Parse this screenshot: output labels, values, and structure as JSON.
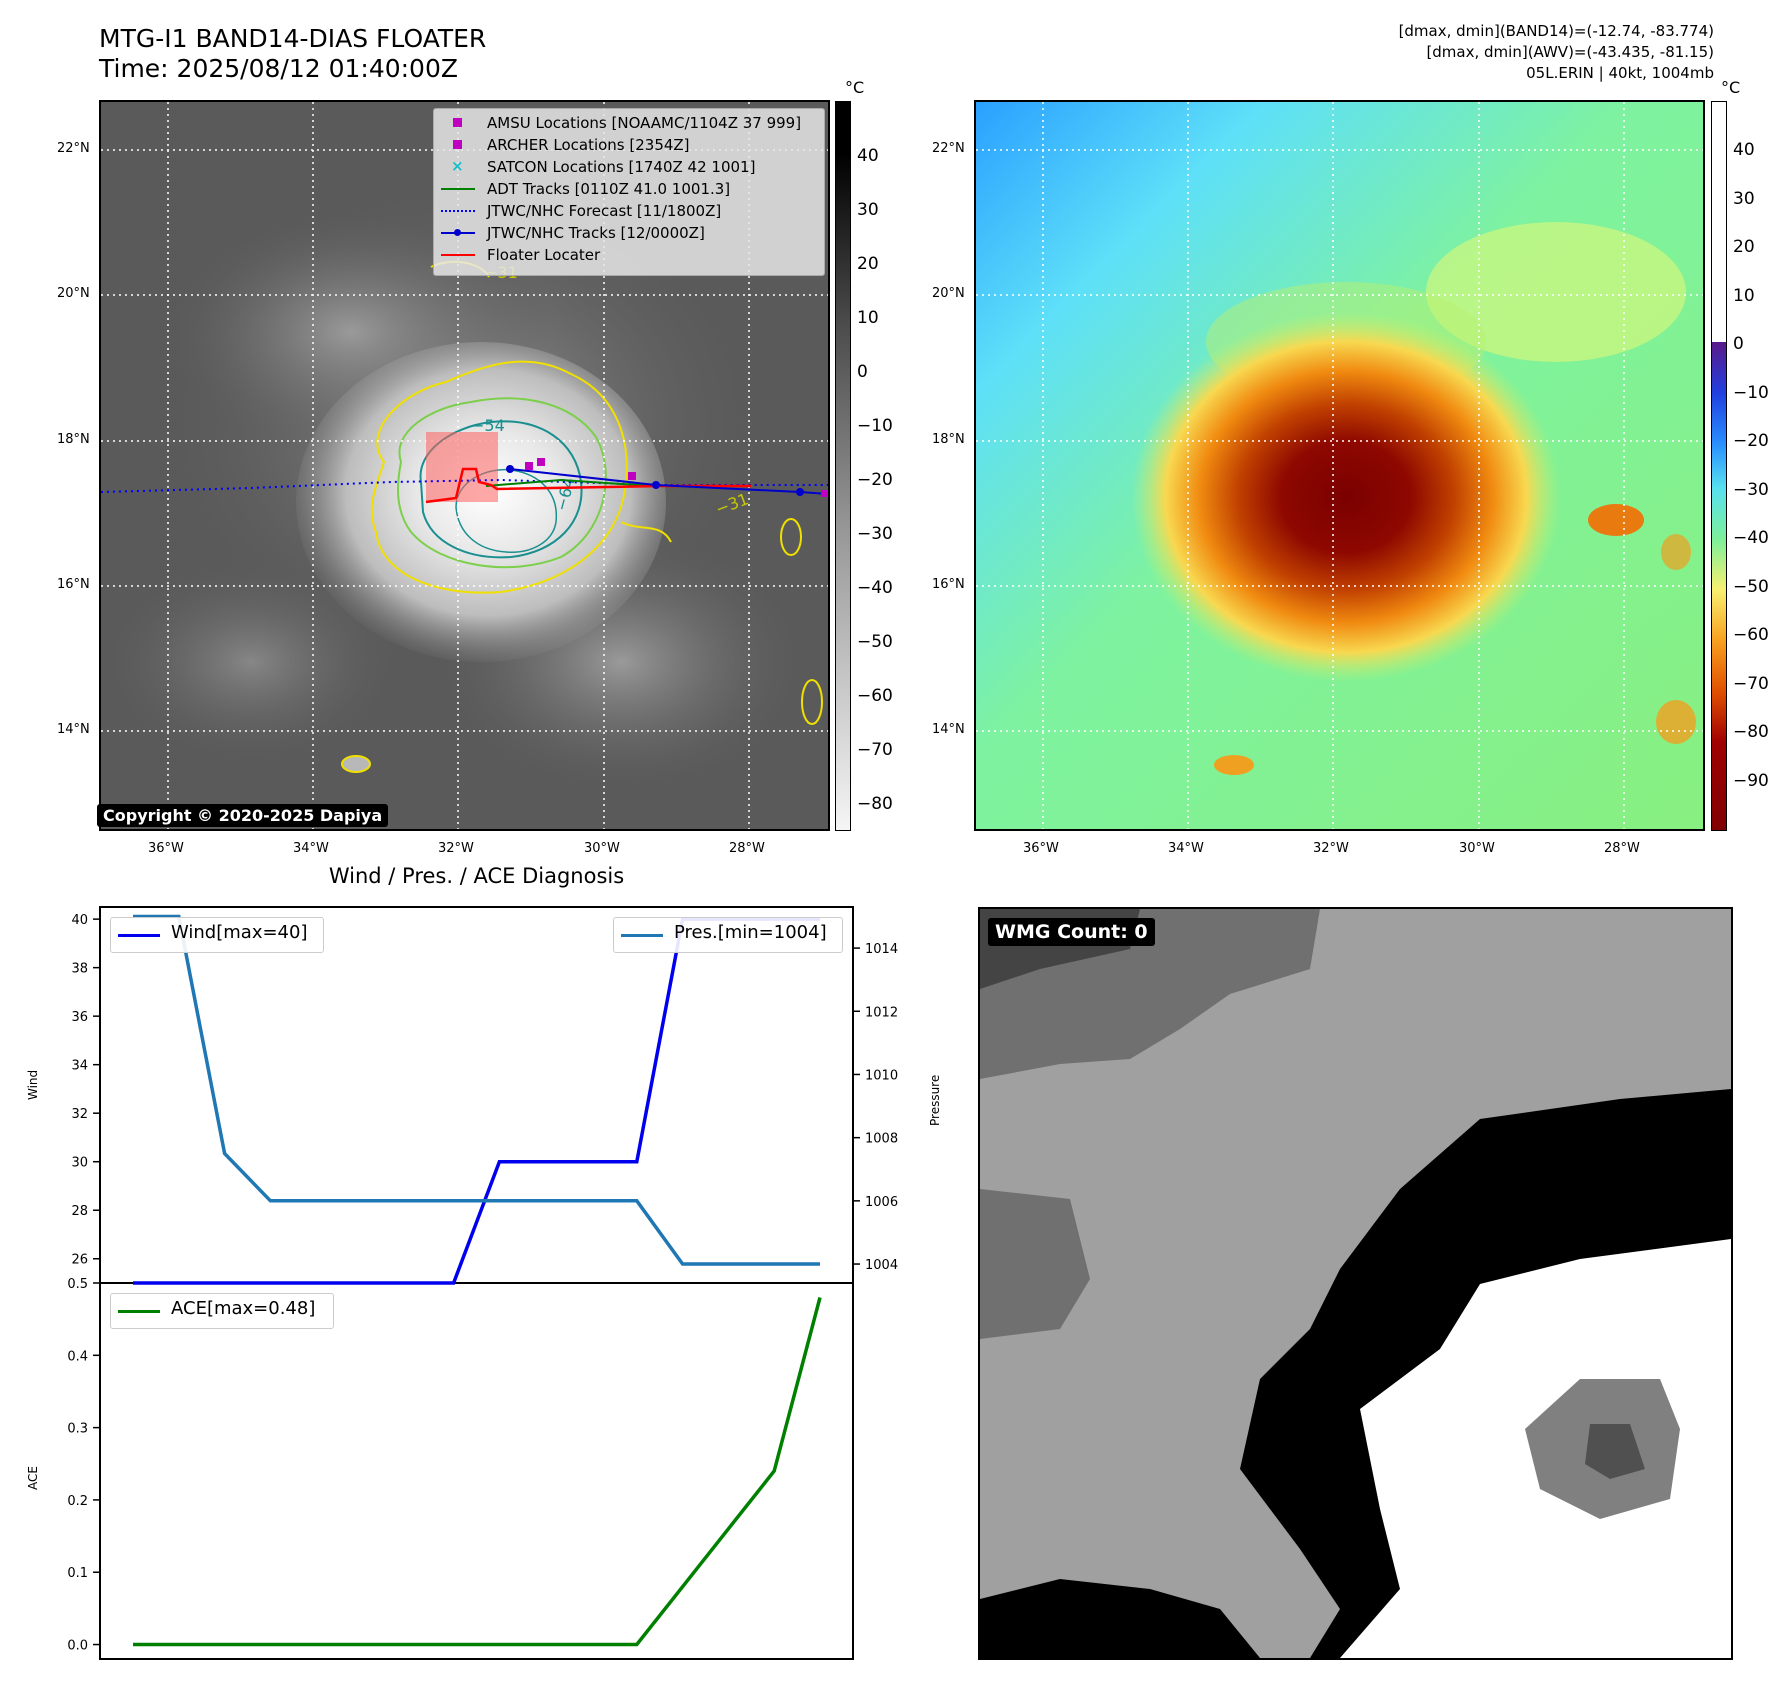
{
  "header": {
    "title_line1": "MTG-I1 BAND14-DIAS FLOATER",
    "title_line2": "Time: 2025/08/12 01:40:00Z",
    "info_line1": "[dmax, dmin](BAND14)=(-12.74, -83.774)",
    "info_line2": "[dmax, dmin](AWV)=(-43.435, -81.15)",
    "info_line3": "05L.ERIN | 40kt, 1004mb"
  },
  "map": {
    "lat_ticks": [
      "22°N",
      "20°N",
      "18°N",
      "16°N",
      "14°N"
    ],
    "lon_ticks": [
      "36°W",
      "34°W",
      "32°W",
      "30°W",
      "28°W"
    ],
    "colorbar_unit": "°C",
    "ir_colorbar_ticks": [
      "40",
      "30",
      "20",
      "10",
      "0",
      "−10",
      "−20",
      "−30",
      "−40",
      "−50",
      "−60",
      "−70",
      "−80"
    ],
    "awv_colorbar_ticks": [
      "40",
      "30",
      "20",
      "10",
      "0",
      "−10",
      "−20",
      "−30",
      "−40",
      "−50",
      "−60",
      "−70",
      "−80",
      "−90"
    ],
    "contour_labels": [
      "−31",
      "−54",
      "−64",
      "−31"
    ],
    "copyright": "Copyright © 2020-2025 Dapiya",
    "legend": [
      {
        "label": "AMSU Locations [NOAAMC/1104Z 37 999]",
        "marker": "square",
        "color": "#c000c0"
      },
      {
        "label": "ARCHER Locations [2354Z]",
        "marker": "square",
        "color": "#c000c0"
      },
      {
        "label": "SATCON Locations [1740Z 42 1001]",
        "marker": "x",
        "color": "#17bec8"
      },
      {
        "label": "ADT Tracks [0110Z 41.0 1001.3]",
        "marker": "line",
        "color": "#008000"
      },
      {
        "label": "JTWC/NHC Forecast [11/1800Z]",
        "marker": "dotted",
        "color": "#0000ff"
      },
      {
        "label": "JTWC/NHC Tracks [12/0000Z]",
        "marker": "line-dot",
        "color": "#0000cc"
      },
      {
        "label": "Floater Locater",
        "marker": "line",
        "color": "#ff0000"
      }
    ]
  },
  "diagnosis": {
    "title": "Wind / Pres. / ACE Diagnosis",
    "wind_ylabel": "Wind",
    "pressure_ylabel": "Pressure",
    "ace_ylabel": "ACE",
    "wind_legend": "Wind[max=40]",
    "pressure_legend": "Pres.[min=1004]",
    "ace_legend": "ACE[max=0.48]",
    "wind_ticks": [
      "40",
      "38",
      "36",
      "34",
      "32",
      "30",
      "28",
      "26"
    ],
    "pressure_ticks": [
      "1014",
      "1012",
      "1010",
      "1008",
      "1006",
      "1004"
    ],
    "ace_ticks": [
      "0.5",
      "0.4",
      "0.3",
      "0.2",
      "0.1",
      "0.0"
    ]
  },
  "wmg": {
    "label": "WMG Count: 0"
  },
  "chart_data": [
    {
      "type": "line",
      "series": [
        {
          "name": "Wind[max=40]",
          "color": "#0000ee",
          "axis": "left",
          "x": [
            0,
            1,
            2,
            3,
            4,
            5,
            6,
            7,
            8,
            9,
            10,
            11,
            12,
            13,
            14,
            15
          ],
          "values": [
            25,
            25,
            25,
            25,
            25,
            25,
            25,
            25,
            30,
            30,
            30,
            30,
            40,
            40,
            40,
            40
          ]
        },
        {
          "name": "Pres.[min=1004]",
          "color": "#1f77b4",
          "axis": "right",
          "x": [
            0,
            1,
            2,
            3,
            4,
            5,
            6,
            7,
            8,
            9,
            10,
            11,
            12,
            13,
            14,
            15
          ],
          "values": [
            1015,
            1015,
            1007.5,
            1006,
            1006,
            1006,
            1006,
            1006,
            1006,
            1006,
            1006,
            1006,
            1004,
            1004,
            1004,
            1004
          ]
        }
      ],
      "ylim_left": [
        25,
        40.5
      ],
      "ylim_right": [
        1003.4,
        1015.3
      ]
    },
    {
      "type": "line",
      "series": [
        {
          "name": "ACE[max=0.48]",
          "color": "#008000",
          "x": [
            0,
            1,
            2,
            3,
            4,
            5,
            6,
            7,
            8,
            9,
            10,
            11,
            12,
            13,
            14,
            15
          ],
          "values": [
            0,
            0,
            0,
            0,
            0,
            0,
            0,
            0,
            0,
            0,
            0,
            0,
            0.08,
            0.16,
            0.24,
            0.48
          ]
        }
      ],
      "ylim": [
        -0.02,
        0.5
      ]
    }
  ]
}
